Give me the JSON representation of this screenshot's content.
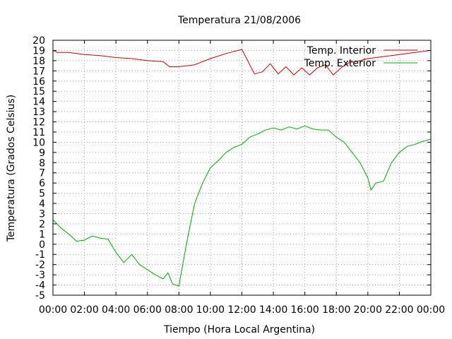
{
  "chart_data": {
    "type": "line",
    "title": "Temperatura 21/08/2006",
    "xlabel": "Tiempo (Hora Local Argentina)",
    "ylabel": "Temperatura (Grados Celsius)",
    "xlim": [
      0,
      24
    ],
    "ylim": [
      -5,
      20
    ],
    "grid": true,
    "legend_position": "top-right",
    "x_tick_labels": [
      "00:00",
      "02:00",
      "04:00",
      "06:00",
      "08:00",
      "10:00",
      "12:00",
      "14:00",
      "16:00",
      "18:00",
      "20:00",
      "22:00",
      "00:00"
    ],
    "y_tick_labels": [
      "-5",
      "-4",
      "-3",
      "-2",
      "-1",
      "0",
      "1",
      "2",
      "3",
      "4",
      "5",
      "6",
      "7",
      "8",
      "9",
      "10",
      "11",
      "12",
      "13",
      "14",
      "15",
      "16",
      "17",
      "18",
      "19",
      "20"
    ],
    "series": [
      {
        "name": "Temp. Interior",
        "color": "#cc0000",
        "x": [
          0,
          0.3,
          1,
          2,
          3,
          4,
          5,
          6,
          7,
          7.4,
          8,
          9,
          10,
          11,
          12,
          12.8,
          13.3,
          13.8,
          14.3,
          14.8,
          15.3,
          15.8,
          16.3,
          16.8,
          17.3,
          17.8,
          18.3,
          18.8,
          19.5,
          20,
          21,
          22,
          23,
          24
        ],
        "y": [
          19.0,
          18.8,
          18.8,
          18.6,
          18.5,
          18.3,
          18.2,
          18.0,
          17.9,
          17.4,
          17.4,
          17.6,
          18.2,
          18.7,
          19.1,
          16.7,
          16.9,
          17.7,
          16.7,
          17.4,
          16.6,
          17.3,
          16.6,
          17.3,
          17.6,
          16.6,
          17.3,
          17.8,
          18.0,
          18.2,
          18.4,
          18.6,
          18.8,
          19.0
        ]
      },
      {
        "name": "Temp. Exterior",
        "color": "#00aa00",
        "x": [
          0,
          0.5,
          1,
          1.5,
          2,
          2.5,
          3,
          3.5,
          4,
          4.5,
          5,
          5.5,
          6,
          6.5,
          7,
          7.3,
          7.6,
          8,
          8.3,
          8.6,
          9,
          9.5,
          10,
          10.5,
          11,
          11.5,
          12,
          12.5,
          13,
          13.5,
          14,
          14.5,
          15,
          15.5,
          16,
          16.5,
          17,
          17.5,
          18,
          18.5,
          19,
          19.5,
          20,
          20.2,
          20.5,
          21,
          21.5,
          22,
          22.5,
          23,
          23.5,
          24
        ],
        "y": [
          2.4,
          1.6,
          1.0,
          0.3,
          0.4,
          0.8,
          0.6,
          0.5,
          -0.8,
          -1.8,
          -1.0,
          -2.0,
          -2.5,
          -3.0,
          -3.4,
          -2.8,
          -3.9,
          -4.1,
          -1.5,
          1.0,
          4.0,
          6.0,
          7.5,
          8.2,
          9.0,
          9.5,
          9.8,
          10.5,
          10.8,
          11.2,
          11.4,
          11.2,
          11.5,
          11.3,
          11.6,
          11.3,
          11.2,
          11.2,
          10.5,
          10.0,
          9.0,
          8.0,
          6.5,
          5.3,
          6.0,
          6.2,
          8.0,
          9.0,
          9.6,
          9.8,
          10.1,
          10.3
        ]
      }
    ]
  }
}
